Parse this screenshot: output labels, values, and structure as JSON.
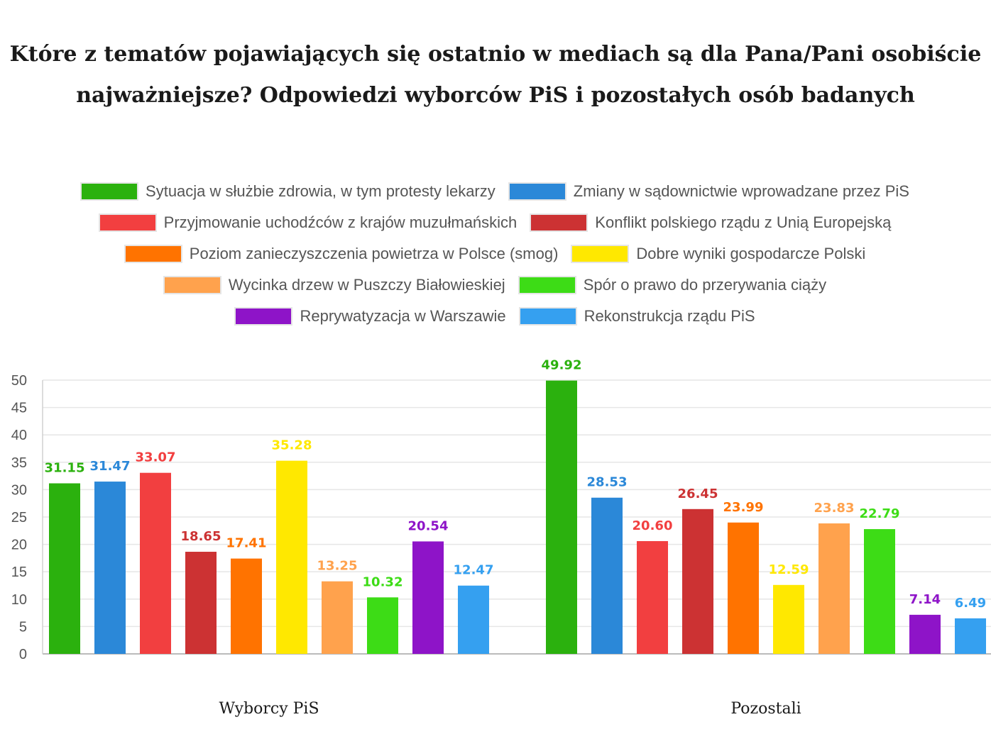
{
  "title_lines": [
    "Które z tematów pojawiających się ostatnio w mediach są dla Pana/Pani osobiście",
    "najważniejsze? Odpowiedzi wyborców PiS i pozostałych osób badanych"
  ],
  "chart_data": {
    "type": "bar",
    "title": "Które z tematów pojawiających się ostatnio w mediach są dla Pana/Pani osobiście najważniejsze? Odpowiedzi wyborców PiS i pozostałych osób badanych",
    "xlabel": "",
    "ylabel": "",
    "ylim": [
      0,
      50
    ],
    "yticks": [
      0,
      5,
      10,
      15,
      20,
      25,
      30,
      35,
      40,
      45,
      50
    ],
    "grid": true,
    "legend_position": "top",
    "categories": [
      "Wyborcy PiS",
      "Pozostali"
    ],
    "series": [
      {
        "name": "Sytuacja w służbie zdrowia, w tym protesty lekarzy",
        "color": "#2bb10e",
        "values": [
          31.15,
          49.92
        ],
        "labels": [
          "31.15",
          "49.92"
        ]
      },
      {
        "name": "Zmiany w sądownictwie wprowadzane przez PiS",
        "color": "#2b88d8",
        "values": [
          31.47,
          28.53
        ],
        "labels": [
          "31.47",
          "28.53"
        ]
      },
      {
        "name": "Przyjmowanie uchodźców z krajów muzułmańskich",
        "color": "#f23f40",
        "values": [
          33.07,
          20.6
        ],
        "labels": [
          "33.07",
          "20.60"
        ]
      },
      {
        "name": "Konflikt polskiego rządu z Unią Europejską",
        "color": "#cc3233",
        "values": [
          18.65,
          26.45
        ],
        "labels": [
          "18.65",
          "26.45"
        ]
      },
      {
        "name": "Poziom zanieczyszczenia powietrza w Polsce (smog)",
        "color": "#ff7300",
        "values": [
          17.41,
          23.99
        ],
        "labels": [
          "17.41",
          "23.99"
        ]
      },
      {
        "name": "Dobre wyniki gospodarcze Polski",
        "color": "#ffe800",
        "values": [
          35.28,
          12.59
        ],
        "labels": [
          "35.28",
          "12.59"
        ]
      },
      {
        "name": "Wycinka drzew w Puszczy Białowieskiej",
        "color": "#ffa24d",
        "values": [
          13.25,
          23.83
        ],
        "labels": [
          "13.25",
          "23.83"
        ]
      },
      {
        "name": "Spór o prawo do przerywania ciąży",
        "color": "#3ddc16",
        "values": [
          10.32,
          22.79
        ],
        "labels": [
          "10.32",
          "22.79"
        ]
      },
      {
        "name": "Reprywatyzacja w Warszawie",
        "color": "#8e14c8",
        "values": [
          20.54,
          7.14
        ],
        "labels": [
          "20.54",
          "7.14"
        ]
      },
      {
        "name": "Rekonstrukcja rządu PiS",
        "color": "#35a0f0",
        "values": [
          12.47,
          6.49
        ],
        "labels": [
          "12.47",
          "6.49"
        ]
      }
    ]
  }
}
